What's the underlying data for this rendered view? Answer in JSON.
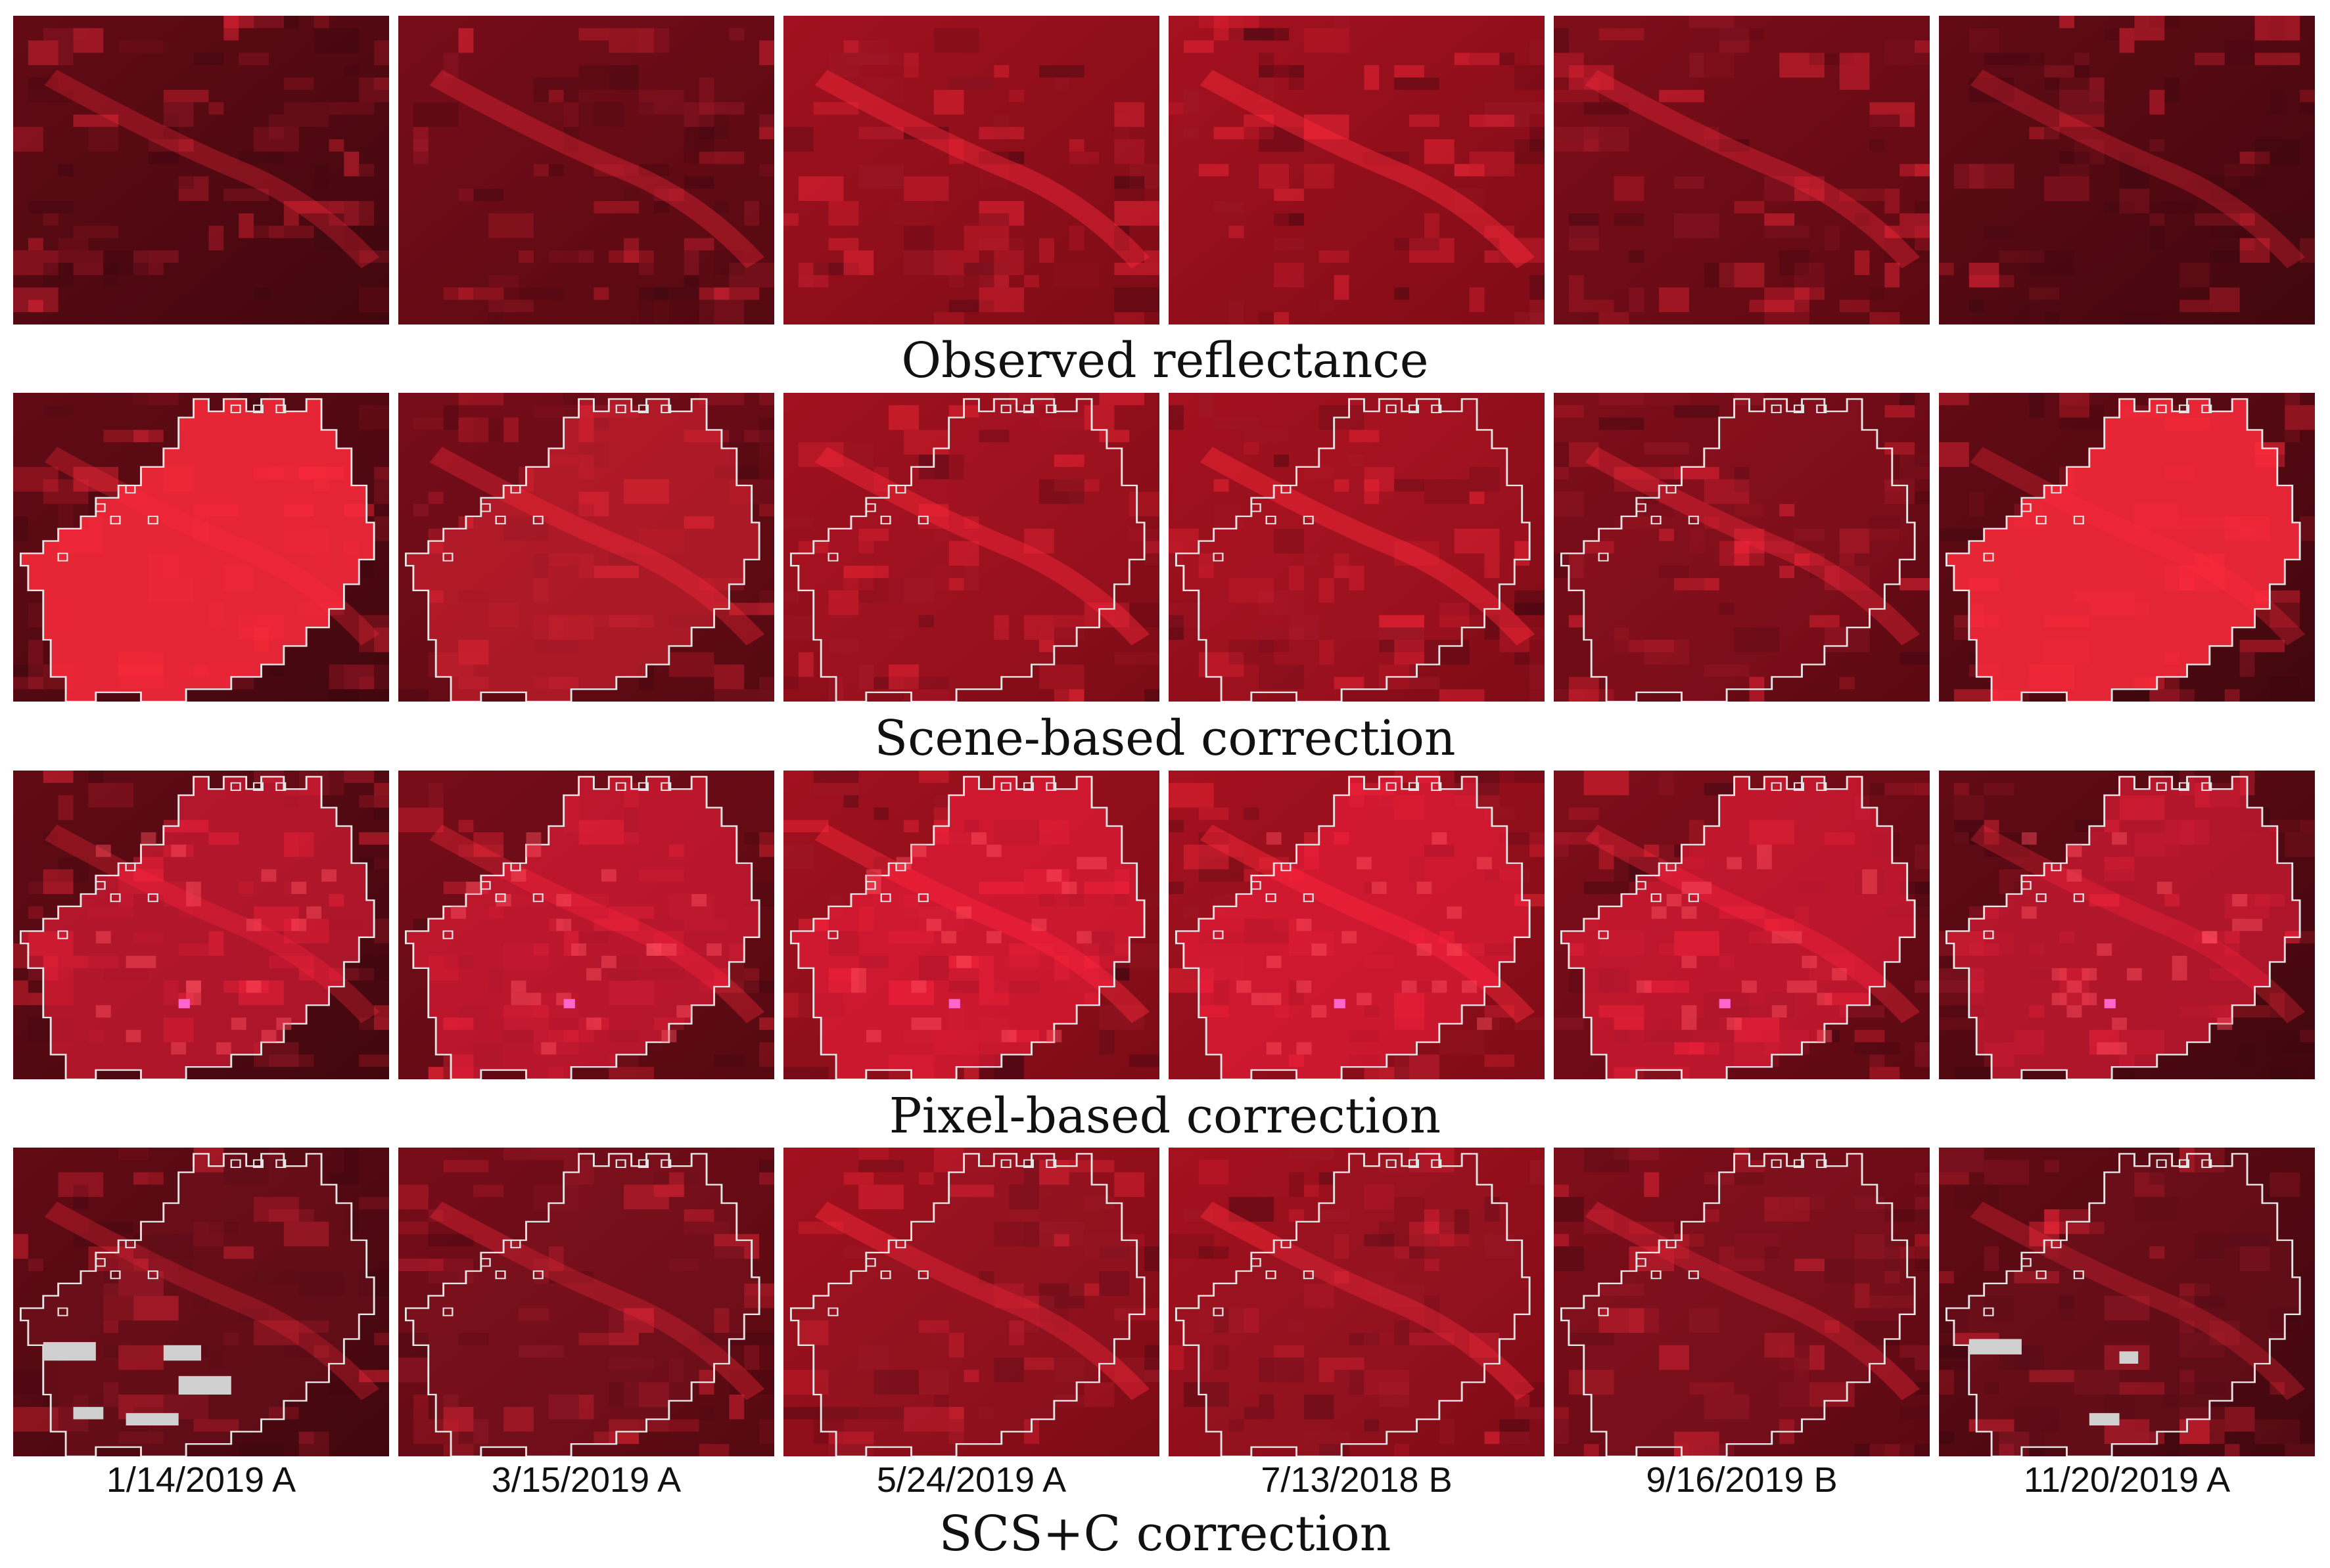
{
  "figure": {
    "rows": [
      {
        "key": "observed",
        "caption": "Observed reflectance"
      },
      {
        "key": "scene",
        "caption": "Scene-based correction"
      },
      {
        "key": "pixel",
        "caption": "Pixel-based correction"
      },
      {
        "key": "scs",
        "caption": "SCS+C correction"
      }
    ],
    "dates": [
      "1/14/2019 A",
      "3/15/2019 A",
      "5/24/2019 A",
      "7/13/2018 B",
      "9/16/2019 B",
      "11/20/2019 A"
    ],
    "colors": {
      "background": "#ffffff",
      "dark_red": "#3a0710",
      "mid_red": "#9e1a2a",
      "bright_red": "#ff2a3c",
      "outline": "#e6e6e6",
      "no_data": "#d0d0d0"
    }
  }
}
